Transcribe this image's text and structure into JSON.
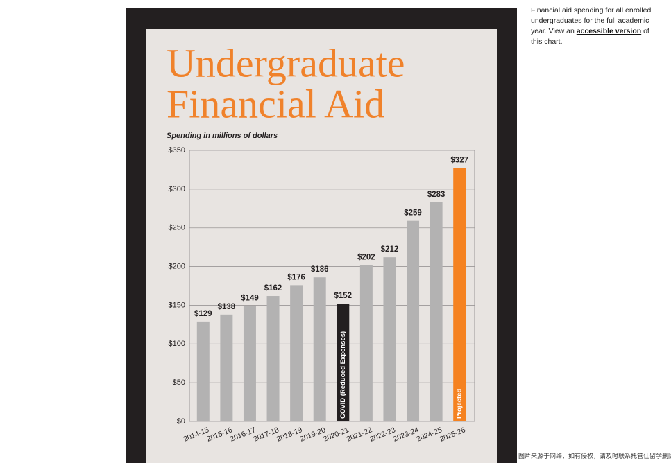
{
  "chart_data": {
    "type": "bar",
    "title_lines": [
      "Undergraduate",
      "Financial Aid"
    ],
    "subtitle": "Spending in millions of dollars",
    "categories": [
      "2014-15",
      "2015-16",
      "2016-17",
      "2017-18",
      "2018-19",
      "2019-20",
      "2020-21",
      "2021-22",
      "2022-23",
      "2023-24",
      "2024-25",
      "2025-26"
    ],
    "values": [
      129,
      138,
      149,
      162,
      176,
      186,
      152,
      202,
      212,
      259,
      283,
      327
    ],
    "value_labels": [
      "$129",
      "$138",
      "$149",
      "$162",
      "$176",
      "$186",
      "$152",
      "$202",
      "$212",
      "$259",
      "$283",
      "$327"
    ],
    "colors": [
      "#b3b2b2",
      "#b3b2b2",
      "#b3b2b2",
      "#b3b2b2",
      "#b3b2b2",
      "#b3b2b2",
      "#231f20",
      "#b3b2b2",
      "#b3b2b2",
      "#b3b2b2",
      "#b3b2b2",
      "#f58220"
    ],
    "bar_notes": [
      null,
      null,
      null,
      null,
      null,
      null,
      "COVID (Reduced Expenses)",
      null,
      null,
      null,
      null,
      "Projected"
    ],
    "ylim": [
      0,
      350
    ],
    "yticks": [
      {
        "value": 0,
        "label": "$0"
      },
      {
        "value": 50,
        "label": "$50"
      },
      {
        "value": 100,
        "label": "$100"
      },
      {
        "value": 150,
        "label": "$150"
      },
      {
        "value": 200,
        "label": "$200"
      },
      {
        "value": 250,
        "label": "$250"
      },
      {
        "value": 300,
        "label": "$300"
      },
      {
        "value": 350,
        "label": "$350"
      }
    ],
    "grid": true
  },
  "caption": {
    "text_before": "Financial aid spending for all enrolled undergraduates for the full academic year. View an ",
    "link": "accessible version",
    "text_after": " of this chart."
  },
  "watermark": "图片来源于网络，如有侵权，请及时联系托管仕留学删除"
}
